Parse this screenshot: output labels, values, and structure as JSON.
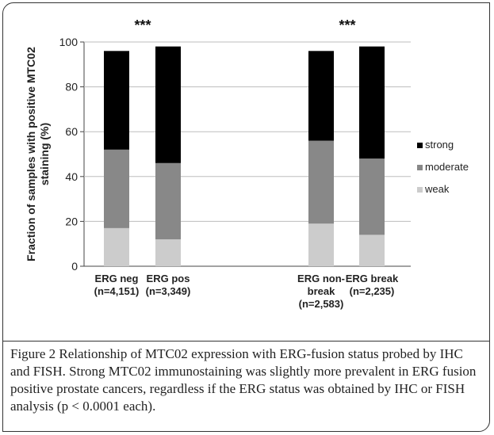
{
  "chart_data": {
    "type": "bar",
    "stacked": true,
    "ylabel": "Fraction of samples with positive MTC02 staining (%)",
    "ylim": [
      0,
      100
    ],
    "yticks": [
      0,
      20,
      40,
      60,
      80,
      100
    ],
    "categories": [
      {
        "lines": [
          "ERG neg",
          "(n=4,151)"
        ]
      },
      {
        "lines": [
          "ERG pos",
          "(n=3,349)"
        ]
      },
      {
        "lines": [
          "ERG non-",
          "break",
          "(n=2,583)"
        ]
      },
      {
        "lines": [
          "ERG break",
          "(n=2,235)"
        ]
      }
    ],
    "series": [
      {
        "name": "weak",
        "color": "#cccccc",
        "values": [
          17,
          12,
          19,
          14
        ]
      },
      {
        "name": "moderate",
        "color": "#888888",
        "values": [
          35,
          34,
          37,
          34
        ]
      },
      {
        "name": "strong",
        "color": "#000000",
        "values": [
          44,
          52,
          40,
          50
        ]
      }
    ],
    "annotations": [
      "***",
      "***"
    ],
    "legend_position": "right"
  },
  "caption": {
    "text": "Figure 2 Relationship of MTC02 expression with ERG-fusion status probed by IHC and FISH. Strong MTC02 immunostaining was slightly more prevalent in ERG fusion positive prostate cancers, regardless if the ERG status was obtained by IHC or FISH analysis (p < 0.0001 each)."
  }
}
